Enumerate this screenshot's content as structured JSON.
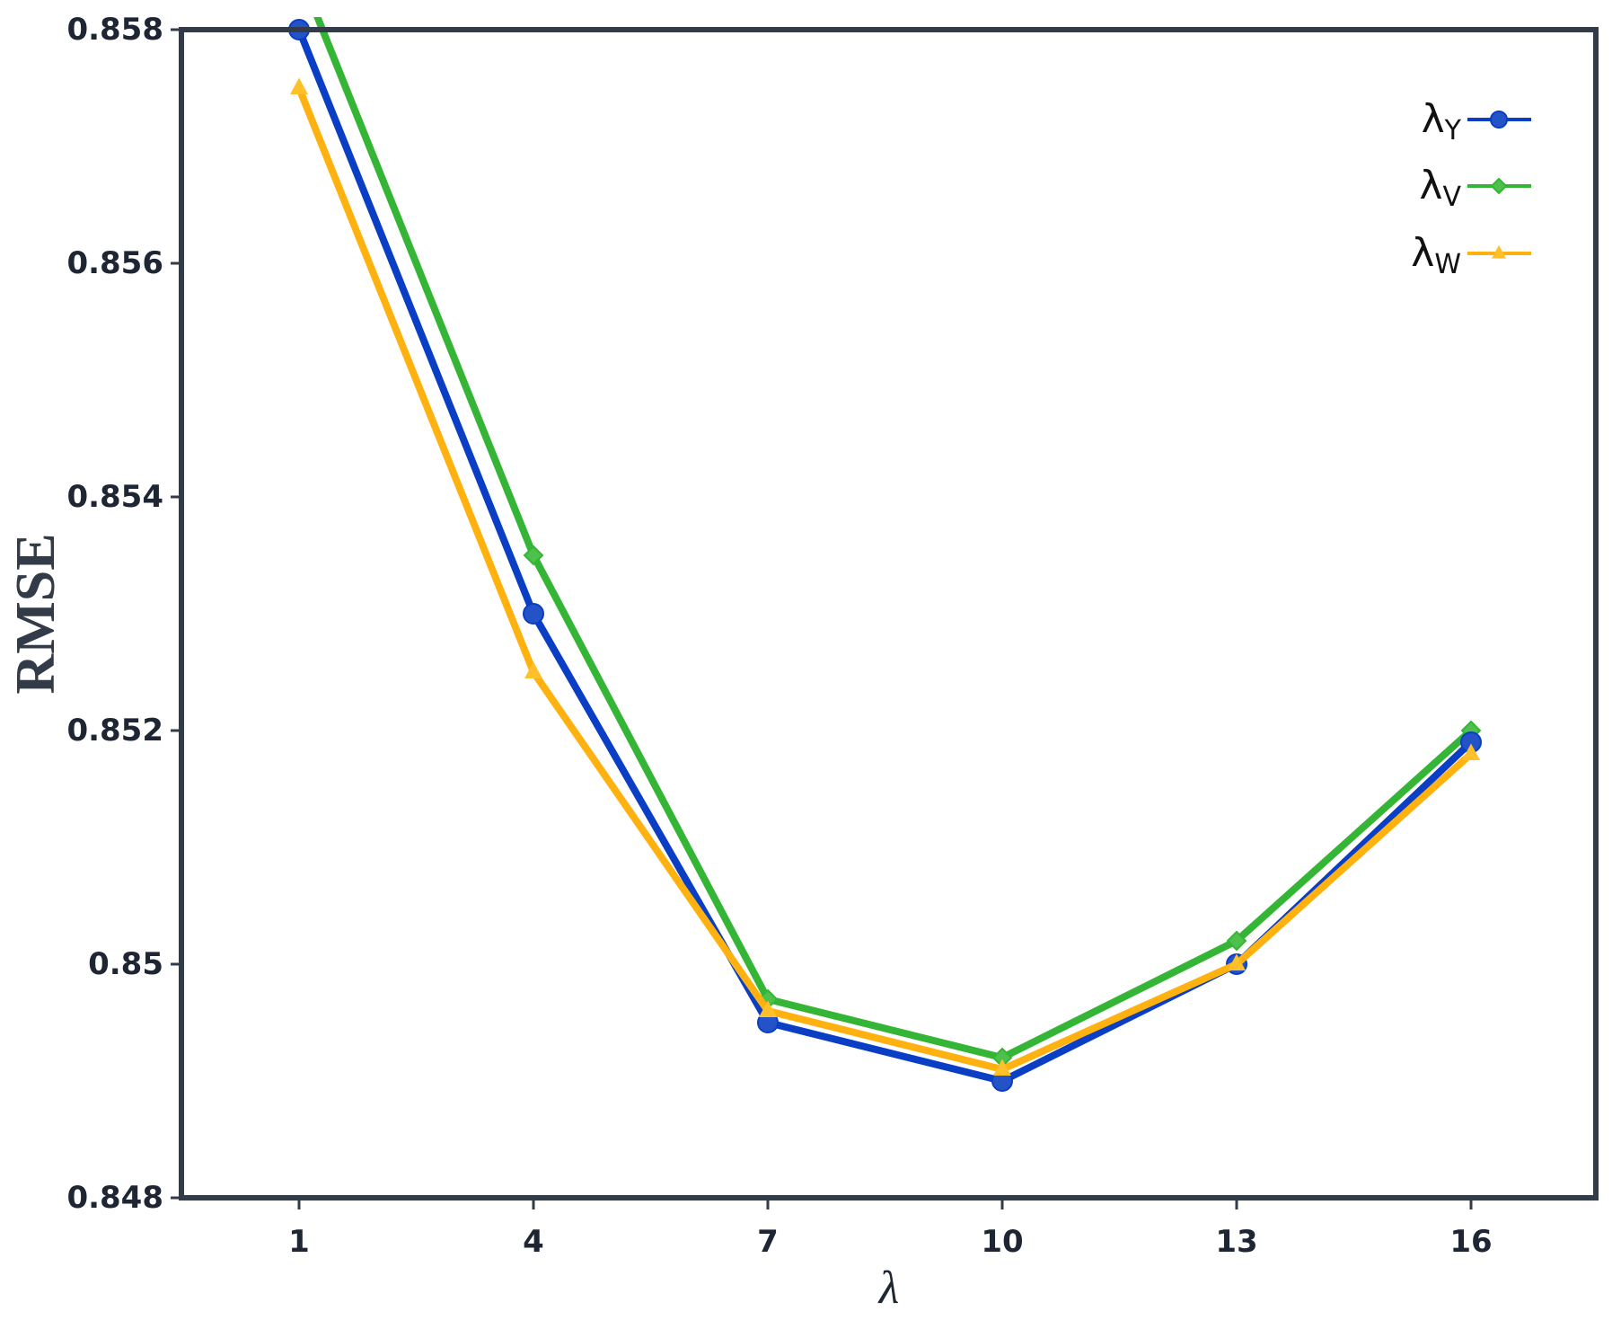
{
  "chart_data": {
    "type": "line",
    "title": "",
    "xlabel": "λ",
    "ylabel": "RMSE",
    "x": [
      1,
      4,
      7,
      10,
      13,
      16
    ],
    "x_ticks": [
      "1",
      "4",
      "7",
      "10",
      "13",
      "16"
    ],
    "y_ticks": [
      "0.858",
      "0.856",
      "0.854",
      "0.852",
      "0.85",
      "0.848"
    ],
    "y_tick_values": [
      0.858,
      0.856,
      0.854,
      0.852,
      0.85,
      0.848
    ],
    "ylim": [
      0.848,
      0.858
    ],
    "xlim": [
      -0.5,
      18.5
    ],
    "grid": false,
    "legend_position": "upper right",
    "series": [
      {
        "name": "λY",
        "symbol": "λ",
        "subscript": "Y",
        "color": "#0a3ec4",
        "marker_color": "#2453c8",
        "marker": "circle",
        "values": [
          0.858,
          0.853,
          0.8495,
          0.849,
          0.85,
          0.8519
        ]
      },
      {
        "name": "λV",
        "symbol": "λ",
        "subscript": "V",
        "color": "#35b535",
        "marker_color": "#4cc24c",
        "marker": "diamond",
        "values": [
          0.8585,
          0.8535,
          0.8497,
          0.8492,
          0.8502,
          0.852
        ]
      },
      {
        "name": "λW",
        "symbol": "λ",
        "subscript": "W",
        "color": "#ffb20f",
        "marker_color": "#ffc02a",
        "marker": "triangle",
        "values": [
          0.8575,
          0.8525,
          0.8496,
          0.8491,
          0.85,
          0.8518
        ]
      }
    ]
  },
  "colors": {
    "axis": "#333b48",
    "text": "#1e2533"
  }
}
